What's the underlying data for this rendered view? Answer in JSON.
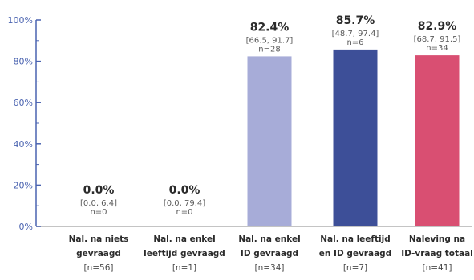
{
  "chart_data": {
    "type": "bar",
    "ylim": [
      0,
      100
    ],
    "yticks": [
      "0%",
      "20%",
      "40%",
      "60%",
      "80%",
      "100%"
    ],
    "ytick_values": [
      0,
      20,
      40,
      60,
      80,
      100
    ],
    "categories": [
      [
        "Nal. na niets",
        "gevraagd",
        "[n=56]"
      ],
      [
        "Nal. na enkel",
        "leeftijd gevraagd",
        "[n=1]"
      ],
      [
        "Nal. na enkel",
        "ID gevraagd",
        "[n=34]"
      ],
      [
        "Nal. na leeftijd",
        "en ID gevraagd",
        "[n=7]"
      ],
      [
        "Naleving na",
        "ID-vraag totaal",
        "[n=41]"
      ]
    ],
    "values": [
      0.0,
      0.0,
      82.4,
      85.7,
      82.9
    ],
    "value_labels": [
      "0.0%",
      "0.0%",
      "82.4%",
      "85.7%",
      "82.9%"
    ],
    "ci_labels": [
      "[0.0, 6.4]",
      "[0.0, 79.4]",
      "[66.5, 91.7]",
      "[48.7, 97.4]",
      "[68.7, 91.5]"
    ],
    "n_labels": [
      "n=0",
      "n=0",
      "n=28",
      "n=6",
      "n=34"
    ],
    "colors": [
      "#b9b9d9",
      "#b9b9d9",
      "#a7acd8",
      "#3d4f98",
      "#d94f72"
    ],
    "axis_color": "#4a63b0",
    "grid": false
  }
}
